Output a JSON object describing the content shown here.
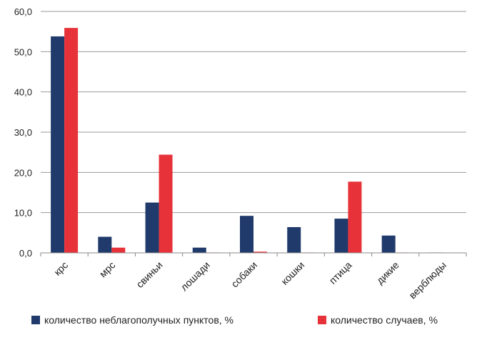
{
  "chart_data": {
    "type": "bar",
    "title": "",
    "xlabel": "",
    "ylabel": "",
    "categories": [
      "крс",
      "мрс",
      "свиньи",
      "лошади",
      "собаки",
      "кошки",
      "птица",
      "дикие",
      "верблюды"
    ],
    "series": [
      {
        "name": "количество неблагополучных пунктов, %",
        "color": "#1f3a6b",
        "values": [
          53.8,
          4.0,
          12.5,
          1.3,
          9.2,
          6.4,
          8.5,
          4.3,
          0.1
        ]
      },
      {
        "name": "количество случаев, %",
        "color": "#e8323a",
        "values": [
          55.9,
          1.3,
          24.4,
          0.1,
          0.3,
          0.1,
          17.7,
          0.1,
          0.0
        ]
      }
    ],
    "ylim": [
      0,
      60
    ],
    "yticks": [
      "0,0",
      "10,0",
      "20,0",
      "30,0",
      "40,0",
      "50,0",
      "60,0"
    ],
    "grid": true,
    "legend_position": "bottom"
  }
}
